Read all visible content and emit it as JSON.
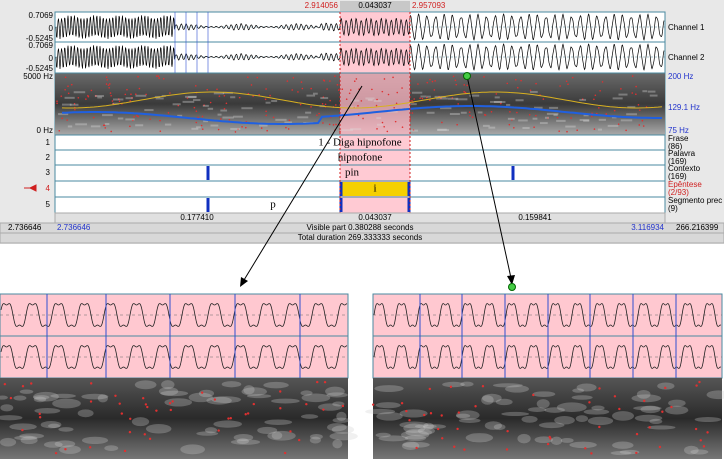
{
  "selection": {
    "start": "2.914056",
    "length": "0.043037",
    "end": "2.957093"
  },
  "waveform": {
    "channels": [
      {
        "max": "0.7069",
        "zero": "0",
        "min": "-0.5245",
        "name": "Channel 1"
      },
      {
        "max": "0.7069",
        "zero": "0",
        "min": "-0.5245",
        "name": "Channel 2"
      }
    ]
  },
  "spectrogram": {
    "freq_max": "5000 Hz",
    "freq_min": "0 Hz",
    "pitch_max": "200 Hz",
    "pitch_value": "129.1 Hz",
    "pitch_min": "75 Hz"
  },
  "tiers": [
    {
      "number": "1",
      "name": "Frase",
      "count": "(86)",
      "intervals": [
        "1 - Diga hipnofone"
      ]
    },
    {
      "number": "2",
      "name": "Palavra",
      "count": "(169)",
      "intervals": [
        "hipnofone"
      ]
    },
    {
      "number": "3",
      "name": "Contexto",
      "count": "(169)",
      "intervals": [
        "pin"
      ]
    },
    {
      "number": "4",
      "name": "Epêntese",
      "count": "(2/93)",
      "intervals": [
        "i"
      ]
    },
    {
      "number": "5",
      "name": "Segmento prec",
      "count": "(9)",
      "intervals": [
        "p"
      ]
    }
  ],
  "durations": [
    "0.177410",
    "0.043037",
    "0.159841"
  ],
  "window": {
    "start": "2.736646",
    "visible_start": "2.736646",
    "visible_part": "Visible part 0.380288 seconds",
    "visible_end": "3.116934",
    "end": "266.216399",
    "total": "Total duration 269.333333 seconds"
  }
}
